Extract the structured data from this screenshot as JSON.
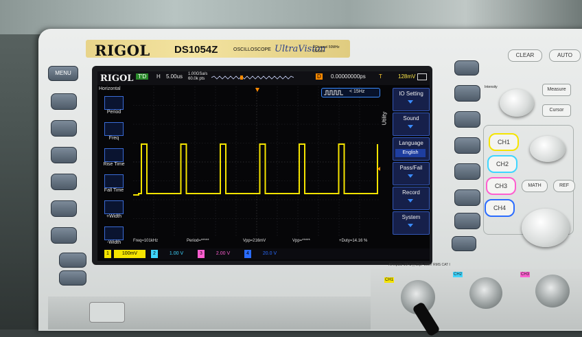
{
  "instrument": {
    "brand": "RIGOL",
    "model": "DS1054Z",
    "type": "OSCILLOSCOPE",
    "series": "UltraVision",
    "spec": "4Channel 50MHz 1GSa/s"
  },
  "screen": {
    "logo": "RIGOL",
    "run_state": "T'D",
    "timebase_label": "H",
    "timebase_value": "5.00us",
    "sample_rate": "1.00GSa/s",
    "memory_depth": "60.0k pts",
    "delay_label": "D",
    "delay_value": "0.00000000ps",
    "trigger_label": "T",
    "trigger_level": "128mV",
    "freq_readout": "< 15Hz",
    "left_menu": {
      "title": "Horizontal",
      "items": [
        "Period",
        "Freq",
        "Rise Time",
        "Fall Time",
        "+Width",
        "-Width"
      ]
    },
    "right_menu": {
      "tab": "Utility",
      "items": [
        {
          "label": "IO Setting",
          "value": ""
        },
        {
          "label": "Sound",
          "value": ""
        },
        {
          "label": "Language",
          "value": "English"
        },
        {
          "label": "Pass/Fail",
          "value": ""
        },
        {
          "label": "Record",
          "value": ""
        },
        {
          "label": "System",
          "value": ""
        }
      ]
    },
    "measurements": [
      "Freq=101kHz",
      "Period=*****",
      "Vpp=216mV",
      "Vpp=*****",
      "+Duty=14.16 %"
    ],
    "channels": [
      {
        "num": "1",
        "scale": "100mV",
        "color": "#f5e400"
      },
      {
        "num": "2",
        "scale": "1.00 V",
        "color": "#3fd6ff"
      },
      {
        "num": "3",
        "scale": "2.00 V",
        "color": "#ff5ed0"
      },
      {
        "num": "4",
        "scale": "20.0 V",
        "color": "#2a6cff"
      }
    ]
  },
  "panel": {
    "menu_button": "MENU",
    "clear_button": "CLEAR",
    "auto_button": "AUTO",
    "intensity_label": "Intensity",
    "measure_button": "Measure",
    "cursor_button": "Cursor",
    "ch_buttons": [
      "CH1",
      "CH2",
      "CH3",
      "CH4"
    ],
    "math_button": "MATH",
    "ref_button": "REF",
    "input_note": "All inputs 1M Ω || 15pF 300V RMS CAT I",
    "bnc_labels": [
      "CH1",
      "CH2",
      "CH3"
    ]
  }
}
